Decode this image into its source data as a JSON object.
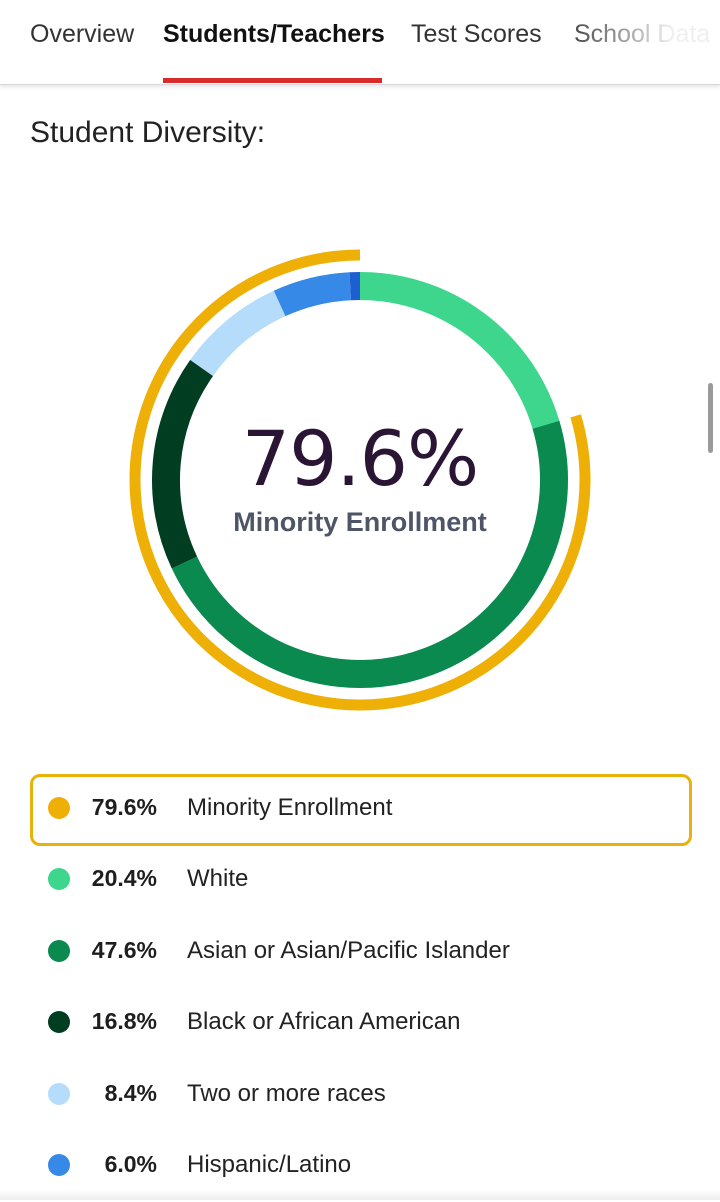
{
  "tabs": [
    {
      "label": "Overview",
      "active": false
    },
    {
      "label": "Students/Teachers",
      "active": true
    },
    {
      "label": "Test Scores",
      "active": false
    },
    {
      "label": "School Data",
      "active": false
    }
  ],
  "section_title": "Student Diversity:",
  "chart_data": {
    "type": "pie",
    "style": "donut",
    "center_value": "79.6%",
    "center_label": "Minority Enrollment",
    "outer_ring": {
      "name": "Minority Enrollment",
      "value": 79.6,
      "color": "#eeb007"
    },
    "slices": [
      {
        "label": "White",
        "value": 20.4,
        "display": "20.4%",
        "color": "#3dd68c"
      },
      {
        "label": "Asian or Asian/Pacific Islander",
        "value": 47.6,
        "display": "47.6%",
        "color": "#0a8a4f"
      },
      {
        "label": "Black or African American",
        "value": 16.8,
        "display": "16.8%",
        "color": "#013d21"
      },
      {
        "label": "Two or more races",
        "value": 8.4,
        "display": "8.4%",
        "color": "#b5dcfb"
      },
      {
        "label": "Hispanic/Latino",
        "value": 6.0,
        "display": "6.0%",
        "color": "#3689e6"
      },
      {
        "label": "",
        "value": 0.8,
        "display": "",
        "color": "#1d5ed1"
      }
    ]
  },
  "legend": [
    {
      "pct": "79.6%",
      "label": "Minority Enrollment",
      "color": "#eeb007",
      "highlight": true
    },
    {
      "pct": "20.4%",
      "label": "White",
      "color": "#3dd68c",
      "highlight": false
    },
    {
      "pct": "47.6%",
      "label": "Asian or Asian/Pacific Islander",
      "color": "#0a8a4f",
      "highlight": false
    },
    {
      "pct": "16.8%",
      "label": "Black or African American",
      "color": "#013d21",
      "highlight": false
    },
    {
      "pct": "8.4%",
      "label": "Two or more races",
      "color": "#b5dcfb",
      "highlight": false
    },
    {
      "pct": "6.0%",
      "label": "Hispanic/Latino",
      "color": "#3689e6",
      "highlight": false
    }
  ]
}
